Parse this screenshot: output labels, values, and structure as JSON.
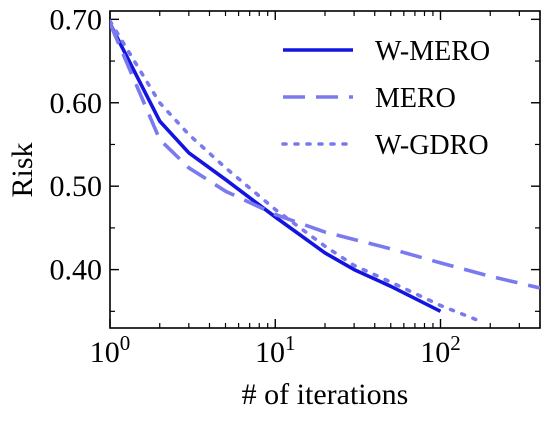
{
  "chart_data": {
    "type": "line",
    "xscale": "log",
    "xlim": [
      1,
      400
    ],
    "ylim": [
      0.33,
      0.71
    ],
    "xlabel": "# of iterations",
    "ylabel": "Risk",
    "xticks": [
      {
        "value": 1,
        "base": "10",
        "exp": "0"
      },
      {
        "value": 10,
        "base": "10",
        "exp": "1"
      },
      {
        "value": 100,
        "base": "10",
        "exp": "2"
      }
    ],
    "yticks": [
      {
        "value": 0.4,
        "label": "0.40"
      },
      {
        "value": 0.5,
        "label": "0.50"
      },
      {
        "value": 0.6,
        "label": "0.60"
      },
      {
        "value": 0.7,
        "label": "0.70"
      }
    ],
    "legend_position": "top-right",
    "grid": false,
    "series": [
      {
        "name": "W-MERO",
        "color": "#1414e0",
        "style": "solid",
        "x": [
          1,
          2,
          3,
          5,
          10,
          20,
          30,
          50,
          100
        ],
        "y": [
          0.695,
          0.578,
          0.54,
          0.508,
          0.463,
          0.42,
          0.4,
          0.38,
          0.35
        ]
      },
      {
        "name": "MERO",
        "color": "#7a7af0",
        "style": "dashed",
        "x": [
          1,
          2,
          3,
          5,
          10,
          20,
          50,
          100,
          200,
          400
        ],
        "y": [
          0.695,
          0.556,
          0.522,
          0.494,
          0.466,
          0.445,
          0.425,
          0.408,
          0.392,
          0.378
        ]
      },
      {
        "name": "W-GDRO",
        "color": "#7a7af0",
        "style": "dotted",
        "x": [
          1,
          2,
          3,
          5,
          10,
          20,
          30,
          50,
          100,
          180
        ],
        "y": [
          0.698,
          0.6,
          0.562,
          0.522,
          0.472,
          0.428,
          0.405,
          0.385,
          0.357,
          0.337
        ]
      }
    ]
  }
}
